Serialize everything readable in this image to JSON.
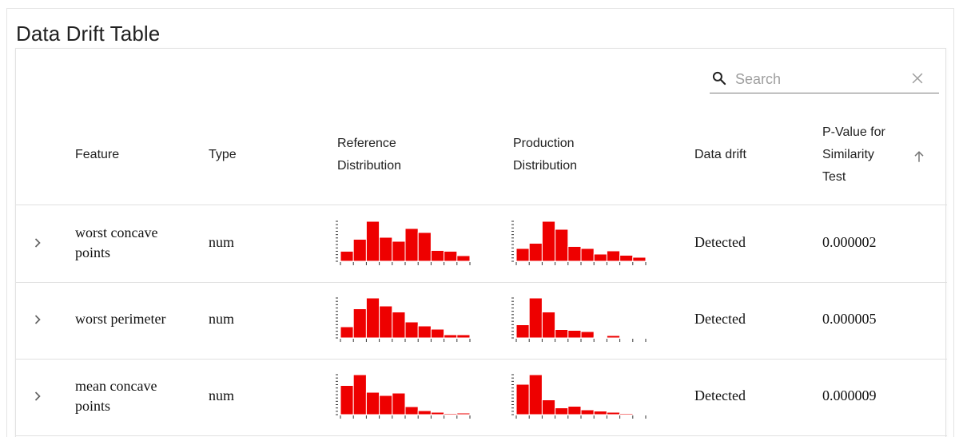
{
  "page": {
    "title": "Data Drift Table"
  },
  "search": {
    "placeholder": "Search",
    "value": ""
  },
  "icons": {
    "search": "search-icon",
    "clear": "close-icon",
    "sort": "arrow-up-icon",
    "expand": "chevron-right-icon"
  },
  "colors": {
    "bar": "#ee0000",
    "accent_text": "#212121"
  },
  "table": {
    "columns": {
      "feature": "Feature",
      "type": "Type",
      "reference_line1": "Reference",
      "reference_line2": "Distribution",
      "production_line1": "Production",
      "production_line2": "Distribution",
      "drift": "Data drift",
      "pvalue_line1": "P-Value for",
      "pvalue_line2": "Similarity",
      "pvalue_line3": "Test"
    },
    "rows": [
      {
        "feature_line1": "worst concave",
        "feature_line2": "points",
        "type": "num",
        "drift": "Detected",
        "pvalue": "0.000002",
        "reference_hist": [
          0.25,
          0.55,
          1.0,
          0.6,
          0.5,
          0.82,
          0.72,
          0.27,
          0.25,
          0.14
        ],
        "production_hist": [
          0.32,
          0.45,
          1.0,
          0.8,
          0.37,
          0.32,
          0.18,
          0.26,
          0.15,
          0.1
        ]
      },
      {
        "feature_line1": "worst perimeter",
        "feature_line2": "",
        "type": "num",
        "drift": "Detected",
        "pvalue": "0.000005",
        "reference_hist": [
          0.28,
          0.73,
          1.0,
          0.8,
          0.65,
          0.4,
          0.3,
          0.22,
          0.08,
          0.08
        ],
        "production_hist": [
          0.33,
          1.0,
          0.65,
          0.21,
          0.19,
          0.16,
          0.02,
          0.06,
          0.0,
          0.0
        ]
      },
      {
        "feature_line1": "mean concave",
        "feature_line2": "points",
        "type": "num",
        "drift": "Detected",
        "pvalue": "0.000009",
        "reference_hist": [
          0.73,
          1.0,
          0.56,
          0.48,
          0.54,
          0.2,
          0.1,
          0.06,
          0.03,
          0.04
        ],
        "production_hist": [
          0.76,
          1.0,
          0.37,
          0.17,
          0.21,
          0.12,
          0.09,
          0.06,
          0.03,
          0.0
        ]
      }
    ]
  }
}
